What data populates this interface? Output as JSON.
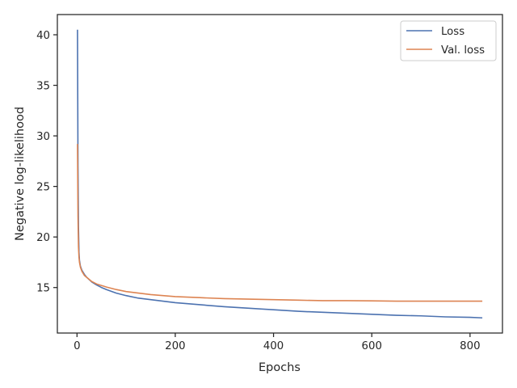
{
  "chart_data": {
    "type": "line",
    "xlabel": "Epochs",
    "ylabel": "Negative log-likelihood",
    "xlim": [
      -40,
      866
    ],
    "ylim": [
      10.5,
      42.0
    ],
    "xticks": [
      0,
      200,
      400,
      600,
      800
    ],
    "yticks": [
      15,
      20,
      25,
      30,
      35,
      40
    ],
    "grid": false,
    "legend": "top-right",
    "series": [
      {
        "name": "Loss",
        "color": "#4c72b0",
        "x": [
          1,
          2,
          3,
          4,
          5,
          7,
          10,
          15,
          20,
          30,
          40,
          50,
          60,
          80,
          100,
          125,
          150,
          200,
          250,
          300,
          350,
          400,
          450,
          500,
          550,
          600,
          650,
          700,
          750,
          800,
          825
        ],
        "y": [
          40.5,
          27.0,
          21.0,
          18.5,
          17.7,
          17.1,
          16.7,
          16.3,
          16.0,
          15.55,
          15.25,
          15.0,
          14.8,
          14.45,
          14.2,
          13.95,
          13.8,
          13.5,
          13.3,
          13.1,
          12.95,
          12.8,
          12.65,
          12.55,
          12.45,
          12.35,
          12.25,
          12.2,
          12.1,
          12.05,
          12.0
        ]
      },
      {
        "name": "Val. loss",
        "color": "#dd8452",
        "x": [
          1,
          2,
          3,
          4,
          5,
          7,
          10,
          15,
          20,
          30,
          40,
          50,
          60,
          80,
          100,
          125,
          150,
          200,
          250,
          300,
          350,
          400,
          450,
          500,
          550,
          600,
          650,
          700,
          750,
          800,
          825
        ],
        "y": [
          29.2,
          22.0,
          19.0,
          18.0,
          17.5,
          17.0,
          16.6,
          16.2,
          16.0,
          15.6,
          15.35,
          15.2,
          15.05,
          14.8,
          14.6,
          14.45,
          14.3,
          14.1,
          14.0,
          13.9,
          13.85,
          13.8,
          13.75,
          13.7,
          13.7,
          13.68,
          13.65,
          13.65,
          13.65,
          13.65,
          13.65
        ]
      }
    ]
  }
}
